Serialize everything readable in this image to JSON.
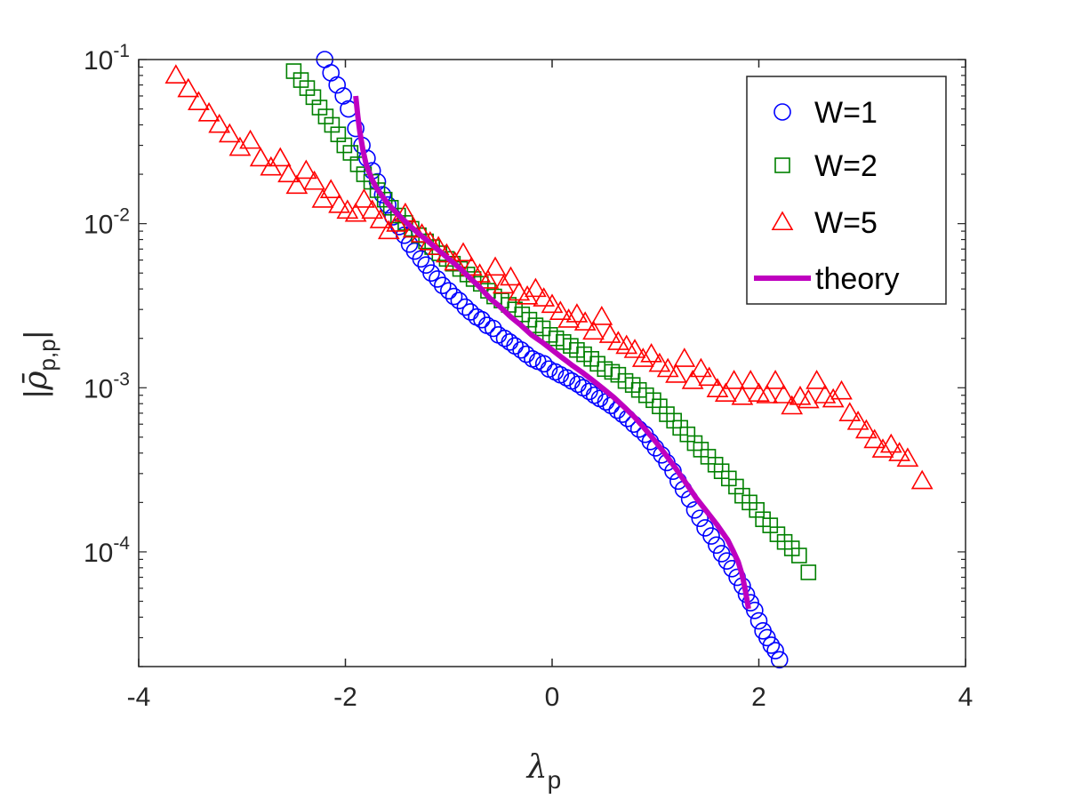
{
  "chart_data": {
    "type": "scatter",
    "title": "",
    "xlabel": {
      "symbol": "λ",
      "subscript": "p"
    },
    "ylabel": {
      "symbol": "ρ̄",
      "subscript": "p,p",
      "bars": "|"
    },
    "xlim": [
      -4,
      4
    ],
    "ylim": [
      2e-05,
      0.1
    ],
    "yscale": "log",
    "legend_position": "top-right",
    "grid": false,
    "x_ticks": [
      {
        "value": -4,
        "label": "-4"
      },
      {
        "value": -2,
        "label": "-2"
      },
      {
        "value": 0,
        "label": "0"
      },
      {
        "value": 2,
        "label": "2"
      },
      {
        "value": 4,
        "label": "4"
      }
    ],
    "y_ticks": [
      {
        "value": 0.1,
        "base": "10",
        "exp": "-1"
      },
      {
        "value": 0.01,
        "base": "10",
        "exp": "-2"
      },
      {
        "value": 0.001,
        "base": "10",
        "exp": "-3"
      },
      {
        "value": 0.0001,
        "base": "10",
        "exp": "-4"
      }
    ],
    "series": [
      {
        "name": "W=1",
        "marker": "circle",
        "color": "#0000ff",
        "points": [
          [
            -2.2,
            0.1
          ],
          [
            -2.14,
            0.083
          ],
          [
            -2.08,
            0.07
          ],
          [
            -2.02,
            0.06
          ],
          [
            -1.97,
            0.05
          ],
          [
            -1.9,
            0.038
          ],
          [
            -1.84,
            0.03
          ],
          [
            -1.79,
            0.025
          ],
          [
            -1.74,
            0.021
          ],
          [
            -1.69,
            0.018
          ],
          [
            -1.64,
            0.015
          ],
          [
            -1.59,
            0.013
          ],
          [
            -1.54,
            0.011
          ],
          [
            -1.48,
            0.0096
          ],
          [
            -1.43,
            0.0085
          ],
          [
            -1.38,
            0.0075
          ],
          [
            -1.33,
            0.0068
          ],
          [
            -1.27,
            0.0061
          ],
          [
            -1.22,
            0.0056
          ],
          [
            -1.17,
            0.005
          ],
          [
            -1.11,
            0.0046
          ],
          [
            -1.06,
            0.0042
          ],
          [
            -1.0,
            0.0039
          ],
          [
            -0.95,
            0.0036
          ],
          [
            -0.9,
            0.0034
          ],
          [
            -0.84,
            0.0031
          ],
          [
            -0.79,
            0.0029
          ],
          [
            -0.73,
            0.0027
          ],
          [
            -0.68,
            0.0026
          ],
          [
            -0.63,
            0.0024
          ],
          [
            -0.57,
            0.0023
          ],
          [
            -0.52,
            0.0021
          ],
          [
            -0.46,
            0.002
          ],
          [
            -0.41,
            0.0019
          ],
          [
            -0.36,
            0.0018
          ],
          [
            -0.3,
            0.0017
          ],
          [
            -0.25,
            0.0016
          ],
          [
            -0.19,
            0.0015
          ],
          [
            -0.14,
            0.00145
          ],
          [
            -0.08,
            0.0014
          ],
          [
            -0.03,
            0.0013
          ],
          [
            0.03,
            0.00125
          ],
          [
            0.08,
            0.0012
          ],
          [
            0.14,
            0.00115
          ],
          [
            0.19,
            0.0011
          ],
          [
            0.25,
            0.00105
          ],
          [
            0.3,
            0.001
          ],
          [
            0.36,
            0.00095
          ],
          [
            0.41,
            0.0009
          ],
          [
            0.46,
            0.00086
          ],
          [
            0.52,
            0.00082
          ],
          [
            0.57,
            0.00078
          ],
          [
            0.63,
            0.00073
          ],
          [
            0.68,
            0.00069
          ],
          [
            0.73,
            0.00065
          ],
          [
            0.79,
            0.0006
          ],
          [
            0.84,
            0.00056
          ],
          [
            0.9,
            0.00052
          ],
          [
            0.95,
            0.00047
          ],
          [
            1.0,
            0.00043
          ],
          [
            1.06,
            0.00039
          ],
          [
            1.11,
            0.00035
          ],
          [
            1.17,
            0.00031
          ],
          [
            1.22,
            0.00027
          ],
          [
            1.27,
            0.00024
          ],
          [
            1.33,
            0.00021
          ],
          [
            1.38,
            0.00018
          ],
          [
            1.43,
            0.00016
          ],
          [
            1.48,
            0.00014
          ],
          [
            1.54,
            0.000125
          ],
          [
            1.59,
            0.00011
          ],
          [
            1.64,
            9.75e-05
          ],
          [
            1.69,
            8.8e-05
          ],
          [
            1.74,
            7.9e-05
          ],
          [
            1.79,
            7e-05
          ],
          [
            1.84,
            6.2e-05
          ],
          [
            1.88,
            5.5e-05
          ],
          [
            1.92,
            4.9e-05
          ],
          [
            1.96,
            4.4e-05
          ],
          [
            2.0,
            3.8e-05
          ],
          [
            2.04,
            3.3e-05
          ],
          [
            2.08,
            3e-05
          ],
          [
            2.12,
            2.7e-05
          ],
          [
            2.16,
            2.5e-05
          ],
          [
            2.2,
            2.2e-05
          ]
        ]
      },
      {
        "name": "W=2",
        "marker": "square",
        "color": "#008000",
        "points": [
          [
            -2.5,
            0.085
          ],
          [
            -2.43,
            0.075
          ],
          [
            -2.37,
            0.067
          ],
          [
            -2.31,
            0.059
          ],
          [
            -2.25,
            0.051
          ],
          [
            -2.19,
            0.045
          ],
          [
            -2.13,
            0.04
          ],
          [
            -2.07,
            0.035
          ],
          [
            -2.01,
            0.03
          ],
          [
            -1.95,
            0.027
          ],
          [
            -1.88,
            0.023
          ],
          [
            -1.82,
            0.02
          ],
          [
            -1.75,
            0.018
          ],
          [
            -1.69,
            0.016
          ],
          [
            -1.62,
            0.014
          ],
          [
            -1.56,
            0.0125
          ],
          [
            -1.49,
            0.0112
          ],
          [
            -1.42,
            0.0101
          ],
          [
            -1.36,
            0.0093
          ],
          [
            -1.29,
            0.0085
          ],
          [
            -1.22,
            0.0078
          ],
          [
            -1.16,
            0.0072
          ],
          [
            -1.09,
            0.0066
          ],
          [
            -1.02,
            0.0061
          ],
          [
            -0.96,
            0.0057
          ],
          [
            -0.89,
            0.0053
          ],
          [
            -0.82,
            0.0049
          ],
          [
            -0.76,
            0.0046
          ],
          [
            -0.69,
            0.0043
          ],
          [
            -0.62,
            0.0039
          ],
          [
            -0.56,
            0.0036
          ],
          [
            -0.49,
            0.0034
          ],
          [
            -0.42,
            0.0032
          ],
          [
            -0.36,
            0.003
          ],
          [
            -0.29,
            0.0028
          ],
          [
            -0.22,
            0.0026
          ],
          [
            -0.16,
            0.0024
          ],
          [
            -0.09,
            0.0023
          ],
          [
            -0.02,
            0.0021
          ],
          [
            0.04,
            0.002
          ],
          [
            0.11,
            0.0019
          ],
          [
            0.18,
            0.0018
          ],
          [
            0.24,
            0.0017
          ],
          [
            0.31,
            0.0016
          ],
          [
            0.38,
            0.0015
          ],
          [
            0.44,
            0.0014
          ],
          [
            0.51,
            0.0013
          ],
          [
            0.58,
            0.00125
          ],
          [
            0.64,
            0.0012
          ],
          [
            0.71,
            0.0011
          ],
          [
            0.78,
            0.00104
          ],
          [
            0.84,
            0.00097
          ],
          [
            0.91,
            0.0009
          ],
          [
            0.98,
            0.00084
          ],
          [
            1.04,
            0.00077
          ],
          [
            1.11,
            0.00069
          ],
          [
            1.18,
            0.00063
          ],
          [
            1.24,
            0.00057
          ],
          [
            1.31,
            0.00052
          ],
          [
            1.38,
            0.00046
          ],
          [
            1.44,
            0.00042
          ],
          [
            1.51,
            0.00038
          ],
          [
            1.58,
            0.00034
          ],
          [
            1.64,
            0.00031
          ],
          [
            1.71,
            0.00028
          ],
          [
            1.78,
            0.00025
          ],
          [
            1.84,
            0.00022
          ],
          [
            1.91,
            0.0002
          ],
          [
            1.98,
            0.00018
          ],
          [
            2.04,
            0.000158
          ],
          [
            2.11,
            0.000145
          ],
          [
            2.18,
            0.000128
          ],
          [
            2.25,
            0.000115
          ],
          [
            2.32,
            0.000105
          ],
          [
            2.39,
            9.5e-05
          ],
          [
            2.48,
            7.5e-05
          ]
        ]
      },
      {
        "name": "W=5",
        "marker": "triangle",
        "color": "#ff0000",
        "points": [
          [
            -3.64,
            0.08
          ],
          [
            -3.52,
            0.066
          ],
          [
            -3.42,
            0.055
          ],
          [
            -3.32,
            0.047
          ],
          [
            -3.22,
            0.04
          ],
          [
            -3.12,
            0.035
          ],
          [
            -3.02,
            0.029
          ],
          [
            -2.92,
            0.032
          ],
          [
            -2.82,
            0.025
          ],
          [
            -2.72,
            0.022
          ],
          [
            -2.63,
            0.025
          ],
          [
            -2.55,
            0.02
          ],
          [
            -2.47,
            0.017
          ],
          [
            -2.38,
            0.021
          ],
          [
            -2.3,
            0.018
          ],
          [
            -2.22,
            0.014
          ],
          [
            -2.14,
            0.016
          ],
          [
            -2.06,
            0.013
          ],
          [
            -1.98,
            0.012
          ],
          [
            -1.9,
            0.0115
          ],
          [
            -1.82,
            0.014
          ],
          [
            -1.74,
            0.012
          ],
          [
            -1.66,
            0.0105
          ],
          [
            -1.58,
            0.009
          ],
          [
            -1.5,
            0.01
          ],
          [
            -1.42,
            0.0115
          ],
          [
            -1.34,
            0.0092
          ],
          [
            -1.26,
            0.0086
          ],
          [
            -1.18,
            0.0077
          ],
          [
            -1.1,
            0.0072
          ],
          [
            -1.02,
            0.0065
          ],
          [
            -0.94,
            0.0058
          ],
          [
            -0.86,
            0.0066
          ],
          [
            -0.78,
            0.0054
          ],
          [
            -0.7,
            0.0049
          ],
          [
            -0.62,
            0.0045
          ],
          [
            -0.55,
            0.0054
          ],
          [
            -0.47,
            0.0042
          ],
          [
            -0.4,
            0.0047
          ],
          [
            -0.32,
            0.0038
          ],
          [
            -0.24,
            0.0036
          ],
          [
            -0.16,
            0.004
          ],
          [
            -0.08,
            0.0035
          ],
          [
            0.0,
            0.0032
          ],
          [
            0.08,
            0.0029
          ],
          [
            0.16,
            0.0026
          ],
          [
            0.24,
            0.0028
          ],
          [
            0.32,
            0.0025
          ],
          [
            0.4,
            0.0022
          ],
          [
            0.48,
            0.0027
          ],
          [
            0.56,
            0.0021
          ],
          [
            0.64,
            0.0019
          ],
          [
            0.72,
            0.0018
          ],
          [
            0.8,
            0.0017
          ],
          [
            0.88,
            0.0015
          ],
          [
            0.96,
            0.0016
          ],
          [
            1.04,
            0.0014
          ],
          [
            1.12,
            0.0013
          ],
          [
            1.2,
            0.0012
          ],
          [
            1.28,
            0.0015
          ],
          [
            1.36,
            0.0011
          ],
          [
            1.44,
            0.0013
          ],
          [
            1.52,
            0.00115
          ],
          [
            1.6,
            0.00098
          ],
          [
            1.68,
            0.00092
          ],
          [
            1.76,
            0.0011
          ],
          [
            1.84,
            0.00088
          ],
          [
            1.92,
            0.0011
          ],
          [
            2.0,
            0.00092
          ],
          [
            2.08,
            0.0009
          ],
          [
            2.16,
            0.0011
          ],
          [
            2.24,
            0.0009
          ],
          [
            2.32,
            0.00077
          ],
          [
            2.4,
            0.00088
          ],
          [
            2.48,
            0.00084
          ],
          [
            2.56,
            0.0011
          ],
          [
            2.64,
            0.0009
          ],
          [
            2.72,
            0.00085
          ],
          [
            2.8,
            0.00095
          ],
          [
            2.88,
            0.0007
          ],
          [
            2.96,
            0.00062
          ],
          [
            3.04,
            0.00055
          ],
          [
            3.12,
            0.00048
          ],
          [
            3.2,
            0.00042
          ],
          [
            3.28,
            0.00045
          ],
          [
            3.36,
            0.0004
          ],
          [
            3.44,
            0.00037
          ],
          [
            3.58,
            0.00027
          ]
        ]
      },
      {
        "name": "theory",
        "marker": "line",
        "color": "#bf00bf",
        "points": [
          [
            -1.9,
            0.06
          ],
          [
            -1.88,
            0.045
          ],
          [
            -1.86,
            0.036
          ],
          [
            -1.83,
            0.028
          ],
          [
            -1.8,
            0.023
          ],
          [
            -1.75,
            0.019
          ],
          [
            -1.7,
            0.0165
          ],
          [
            -1.6,
            0.0135
          ],
          [
            -1.5,
            0.0115
          ],
          [
            -1.4,
            0.01
          ],
          [
            -1.3,
            0.0088
          ],
          [
            -1.2,
            0.0078
          ],
          [
            -1.1,
            0.0069
          ],
          [
            -1.0,
            0.0061
          ],
          [
            -0.9,
            0.0054
          ],
          [
            -0.8,
            0.0047
          ],
          [
            -0.7,
            0.0041
          ],
          [
            -0.6,
            0.0035
          ],
          [
            -0.5,
            0.0031
          ],
          [
            -0.4,
            0.0027
          ],
          [
            -0.3,
            0.0024
          ],
          [
            -0.2,
            0.0021
          ],
          [
            -0.1,
            0.0019
          ],
          [
            0.0,
            0.0017
          ],
          [
            0.1,
            0.00152
          ],
          [
            0.2,
            0.00136
          ],
          [
            0.3,
            0.00123
          ],
          [
            0.4,
            0.0011
          ],
          [
            0.5,
            0.00098
          ],
          [
            0.6,
            0.00087
          ],
          [
            0.7,
            0.00076
          ],
          [
            0.8,
            0.00066
          ],
          [
            0.9,
            0.00056
          ],
          [
            1.0,
            0.00047
          ],
          [
            1.1,
            0.00039
          ],
          [
            1.2,
            0.00032
          ],
          [
            1.3,
            0.00026
          ],
          [
            1.4,
            0.00021
          ],
          [
            1.5,
            0.000175
          ],
          [
            1.6,
            0.000145
          ],
          [
            1.7,
            0.000118
          ],
          [
            1.75,
            0.000102
          ],
          [
            1.8,
            8.7e-05
          ],
          [
            1.84,
            7.2e-05
          ],
          [
            1.87,
            5.8e-05
          ],
          [
            1.9,
            4.5e-05
          ]
        ]
      }
    ]
  }
}
